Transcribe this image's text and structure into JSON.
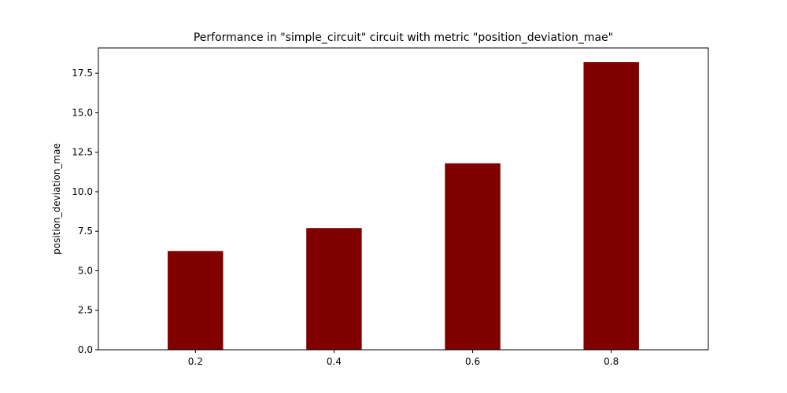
{
  "chart_data": {
    "type": "bar",
    "title": "Performance in \"simple_circuit\" circuit with metric \"position_deviation_mae\"",
    "xlabel": "",
    "ylabel": "position_deviation_mae",
    "categories": [
      "0.2",
      "0.4",
      "0.6",
      "0.8"
    ],
    "values": [
      6.25,
      7.7,
      11.8,
      18.2
    ],
    "ylim": [
      0,
      19.1
    ],
    "yticks": [
      "0.0",
      "2.5",
      "5.0",
      "7.5",
      "10.0",
      "12.5",
      "15.0",
      "17.5"
    ],
    "ytick_values": [
      0,
      2.5,
      5,
      7.5,
      10,
      12.5,
      15,
      17.5
    ],
    "bar_color": "#800000",
    "grid": false,
    "legend": "none"
  }
}
